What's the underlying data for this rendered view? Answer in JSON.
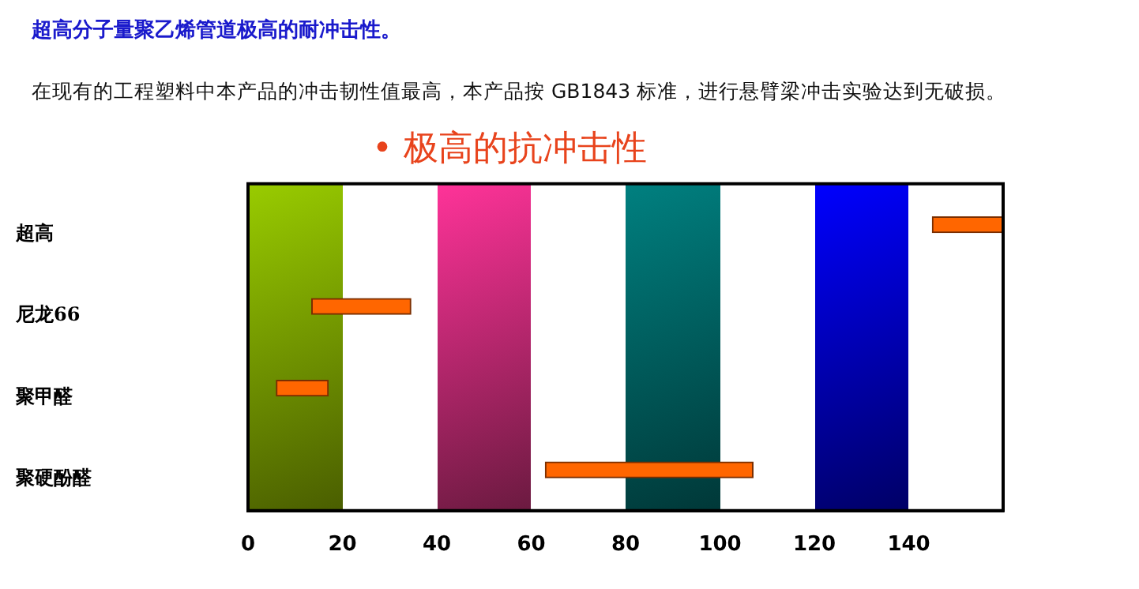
{
  "chart_data": {
    "type": "bar",
    "orientation": "horizontal",
    "title": "• 极高的抗冲击性",
    "annotations": [
      "超高分子量聚乙烯管道极高的耐冲击性。",
      "在现有的工程塑料中本产品的冲击韧性值最高，本产品按 GB1843 标准，进行悬臂梁冲击实验达到无破损。"
    ],
    "categories": [
      "超高",
      "尼龙66",
      "聚甲醛",
      "聚硬酚醛"
    ],
    "base": [
      145,
      13.5,
      6,
      63
    ],
    "values": [
      15,
      21,
      11,
      44
    ],
    "color": "#ff6600",
    "xlim": [
      0,
      160
    ],
    "xticks": [
      0,
      20,
      40,
      60,
      80,
      100,
      120,
      140
    ],
    "grid": false,
    "legend": false
  }
}
